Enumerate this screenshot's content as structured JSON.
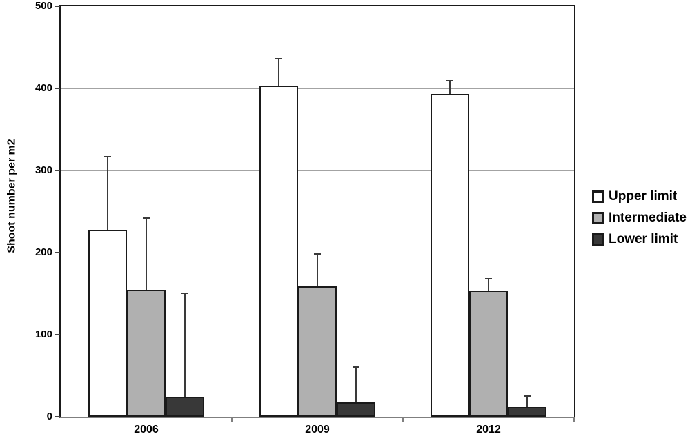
{
  "chart_data": {
    "type": "bar",
    "title": "",
    "xlabel": "",
    "ylabel": "Shoot number per m2",
    "ylim": [
      0,
      500
    ],
    "yticks": [
      0,
      100,
      200,
      300,
      400,
      500
    ],
    "grid": true,
    "legend_position": "right",
    "categories": [
      "2006",
      "2009",
      "2012"
    ],
    "series": [
      {
        "name": "Upper limit",
        "color": "#ffffff",
        "values": [
          228,
          403,
          393
        ],
        "error_top": [
          318,
          437,
          410
        ]
      },
      {
        "name": "Intermediate",
        "color": "#b0b0b0",
        "values": [
          155,
          159,
          154
        ],
        "error_top": [
          243,
          199,
          169
        ]
      },
      {
        "name": "Lower limit",
        "color": "#383838",
        "values": [
          24,
          18,
          12
        ],
        "error_top": [
          151,
          61,
          26
        ]
      }
    ]
  },
  "colors": {
    "background": "#ffffff",
    "bar_border": "#1a1a1a",
    "gridline": "#a3a3a3",
    "axis_frame": "#1a1a1a",
    "baseline": "#7f7f7f",
    "error_bar": "#3a3a3a",
    "text": "#000000"
  }
}
